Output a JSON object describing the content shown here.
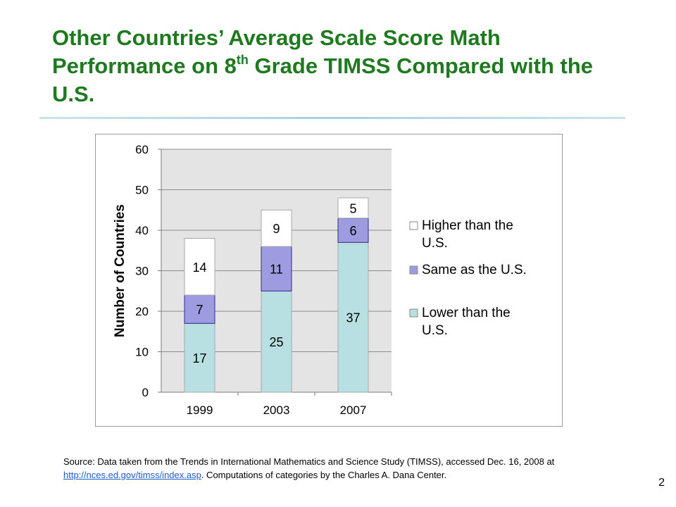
{
  "slide": {
    "title_part1": "Other Countries’ Average Scale Score Math Performance on 8",
    "title_sup": "th",
    "title_part2": " Grade TIMSS Compared with the U.S.",
    "source_before": "Source: Data taken from the Trends in International Mathematics and Science Study (TIMSS), accessed Dec. 16, 2008 at ",
    "source_link": "http://nces.ed.gov/timss/index.asp",
    "source_after": ". Computations of categories by the Charles A. Dana Center.",
    "page_number": "2"
  },
  "chart_data": {
    "type": "bar",
    "stacked": true,
    "title": "",
    "xlabel": "",
    "ylabel": "Number of Countries",
    "categories": [
      "1999",
      "2003",
      "2007"
    ],
    "ylim": [
      0,
      60
    ],
    "yticks": [
      "0",
      "10",
      "20",
      "30",
      "40",
      "50",
      "60"
    ],
    "grid": true,
    "legend_position": "right",
    "series": [
      {
        "name": "Lower than the U.S.",
        "values": [
          17,
          25,
          37
        ],
        "color": "#b8e0e2"
      },
      {
        "name": "Same as the U.S.",
        "values": [
          7,
          11,
          6
        ],
        "color": "#9e9be0"
      },
      {
        "name": "Higher than the U.S.",
        "values": [
          14,
          9,
          5
        ],
        "color": "#ffffff"
      }
    ],
    "plot_background": "#e4e4e4"
  }
}
